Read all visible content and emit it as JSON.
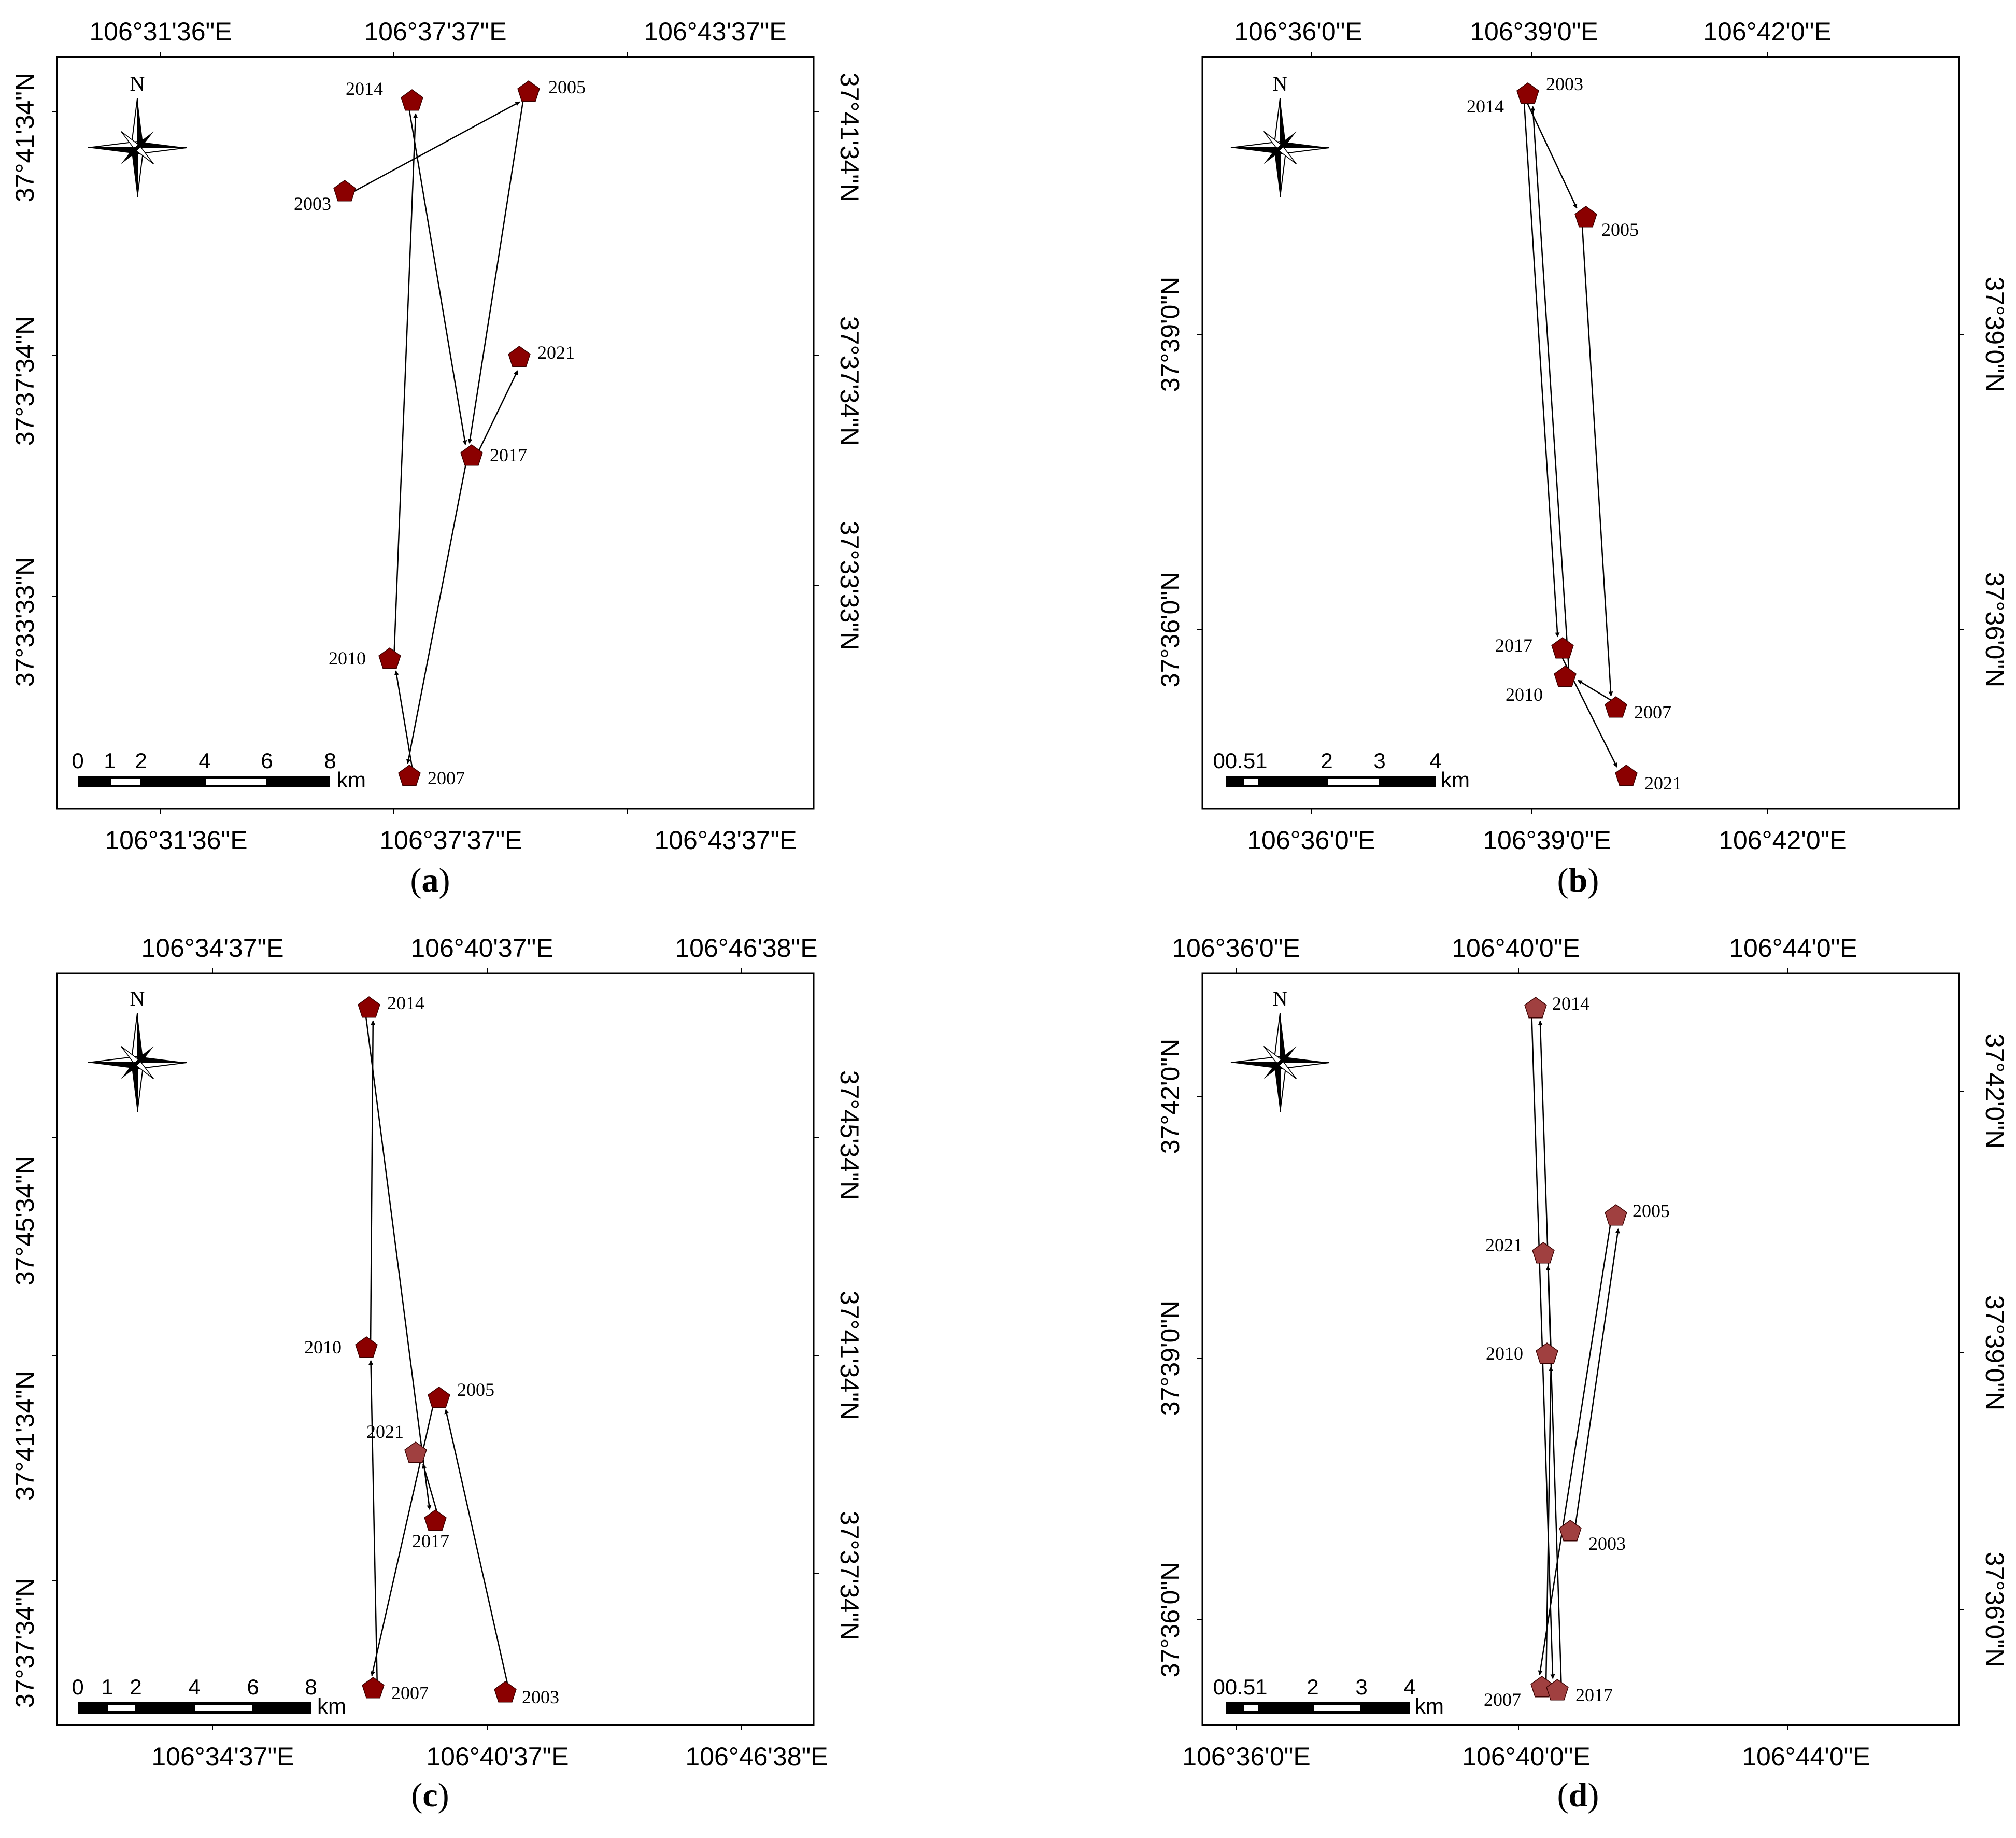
{
  "figure": {
    "panels": [
      {
        "id": "a",
        "caption": "a",
        "top_axis_labels": [
          "106°31'36\"E",
          "106°37'37\"E",
          "106°43'37\"E"
        ],
        "bottom_axis_labels": [
          "106°31'36\"E",
          "106°37'37\"E",
          "106°43'37\"E"
        ],
        "left_axis_labels": [
          "37°41'34\"N",
          "37°37'34\"N",
          "37°33'33\"N"
        ],
        "right_axis_labels": [
          "37°41'34\"N",
          "37°37'34\"N",
          "37°33'33\"N"
        ],
        "north_label": "N",
        "scale_ticks": [
          "0",
          "1",
          "2",
          "4",
          "6",
          "8"
        ],
        "scale_unit": "km",
        "marker_color": "#8b0000",
        "points": [
          {
            "year": "2003",
            "color": "#8b0000"
          },
          {
            "year": "2005",
            "color": "#8b0000"
          },
          {
            "year": "2007",
            "color": "#8b0000"
          },
          {
            "year": "2010",
            "color": "#8b0000"
          },
          {
            "year": "2014",
            "color": "#8b0000"
          },
          {
            "year": "2017",
            "color": "#8b0000"
          },
          {
            "year": "2021",
            "color": "#8b0000"
          }
        ],
        "trajectory": [
          "2003",
          "2005",
          "2007",
          "2010",
          "2014",
          "2017",
          "2021"
        ]
      },
      {
        "id": "b",
        "caption": "b",
        "top_axis_labels": [
          "106°36'0\"E",
          "106°39'0\"E",
          "106°42'0\"E"
        ],
        "bottom_axis_labels": [
          "106°36'0\"E",
          "106°39'0\"E",
          "106°42'0\"E"
        ],
        "left_axis_labels": [
          "37°39'0\"N",
          "37°36'0\"N"
        ],
        "right_axis_labels": [
          "37°39'0\"N",
          "37°36'0\"N"
        ],
        "north_label": "N",
        "scale_ticks": [
          "00.51",
          "2",
          "3",
          "4"
        ],
        "scale_unit": "km",
        "marker_color": "#8b0000",
        "points": [
          {
            "year": "2003",
            "color": "#8b0000"
          },
          {
            "year": "2014",
            "color": "#8b0000"
          },
          {
            "year": "2005",
            "color": "#8b0000"
          },
          {
            "year": "2017",
            "color": "#8b0000"
          },
          {
            "year": "2010",
            "color": "#8b0000"
          },
          {
            "year": "2007",
            "color": "#8b0000"
          },
          {
            "year": "2021",
            "color": "#8b0000"
          }
        ],
        "trajectory": [
          "2003",
          "2005",
          "2007",
          "2010",
          "2014",
          "2017",
          "2021"
        ]
      },
      {
        "id": "c",
        "caption": "c",
        "top_axis_labels": [
          "106°34'37\"E",
          "106°40'37\"E",
          "106°46'38\"E"
        ],
        "bottom_axis_labels": [
          "106°34'37\"E",
          "106°40'37\"E",
          "106°46'38\"E"
        ],
        "left_axis_labels": [
          "37°45'34\"N",
          "37°41'34\"N",
          "37°37'34\"N"
        ],
        "right_axis_labels": [
          "37°45'34\"N",
          "37°41'34\"N",
          "37°37'34\"N"
        ],
        "north_label": "N",
        "scale_ticks": [
          "0",
          "1",
          "2",
          "4",
          "6",
          "8"
        ],
        "scale_unit": "km",
        "marker_color": "#8b0000",
        "points": [
          {
            "year": "2014",
            "color": "#8b0000"
          },
          {
            "year": "2010",
            "color": "#8b0000"
          },
          {
            "year": "2005",
            "color": "#8b0000"
          },
          {
            "year": "2021",
            "color": "#a04040"
          },
          {
            "year": "2017",
            "color": "#8b0000"
          },
          {
            "year": "2007",
            "color": "#8b0000"
          },
          {
            "year": "2003",
            "color": "#8b0000"
          }
        ],
        "trajectory": [
          "2003",
          "2005",
          "2007",
          "2010",
          "2014",
          "2017",
          "2021"
        ]
      },
      {
        "id": "d",
        "caption": "d",
        "top_axis_labels": [
          "106°36'0\"E",
          "106°40'0\"E",
          "106°44'0\"E"
        ],
        "bottom_axis_labels": [
          "106°36'0\"E",
          "106°40'0\"E",
          "106°44'0\"E"
        ],
        "left_axis_labels": [
          "37°42'0\"N",
          "37°39'0\"N",
          "37°36'0\"N"
        ],
        "right_axis_labels": [
          "37°42'0\"N",
          "37°39'0\"N",
          "37°36'0\"N"
        ],
        "north_label": "N",
        "scale_ticks": [
          "00.51",
          "2",
          "3",
          "4"
        ],
        "scale_unit": "km",
        "marker_color": "#a04040",
        "points": [
          {
            "year": "2014",
            "color": "#a04040"
          },
          {
            "year": "2005",
            "color": "#a04040"
          },
          {
            "year": "2021",
            "color": "#a04040"
          },
          {
            "year": "2010",
            "color": "#a04040"
          },
          {
            "year": "2003",
            "color": "#a04040"
          },
          {
            "year": "2007",
            "color": "#a04040"
          },
          {
            "year": "2017",
            "color": "#a04040"
          }
        ],
        "trajectory": [
          "2003",
          "2005",
          "2007",
          "2010",
          "2014",
          "2017",
          "2021"
        ]
      }
    ]
  }
}
